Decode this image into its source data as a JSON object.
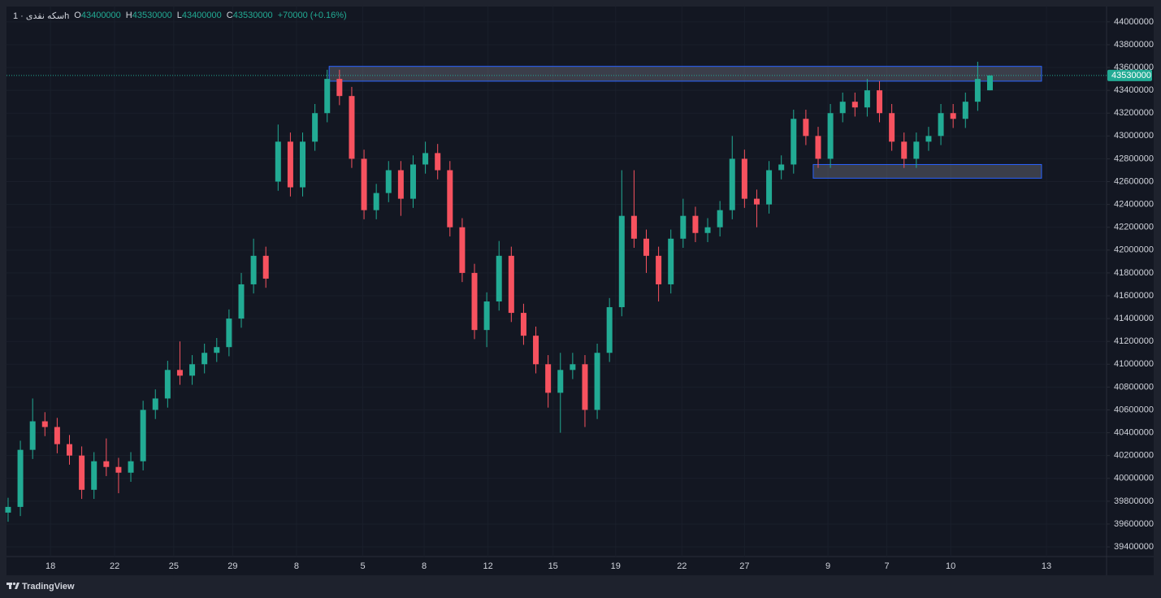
{
  "chart_data": {
    "type": "candlestick",
    "symbol": "سکه نقدی · 1h",
    "ohlc_labels": [
      "O",
      "H",
      "L",
      "C"
    ],
    "change": "+70000 (+0.16%)",
    "brand": "TradingView",
    "up_color": "#22ab94",
    "down_color": "#f7525f",
    "zone_color": "#2962ff",
    "grid": true,
    "xlim": [
      -0.13,
      89.5
    ],
    "xticks": [
      {
        "value": 3.45,
        "label": "18"
      },
      {
        "value": 8.68,
        "label": "22"
      },
      {
        "value": 13.5,
        "label": "25"
      },
      {
        "value": 18.3,
        "label": "29"
      },
      {
        "value": 23.5,
        "label": "8"
      },
      {
        "value": 28.9,
        "label": "5"
      },
      {
        "value": 33.9,
        "label": "8"
      },
      {
        "value": 39.1,
        "label": "12"
      },
      {
        "value": 44.4,
        "label": "15"
      },
      {
        "value": 49.5,
        "label": "19"
      },
      {
        "value": 54.9,
        "label": "22"
      },
      {
        "value": 60,
        "label": "27"
      },
      {
        "value": 66.8,
        "label": "9"
      },
      {
        "value": 71.6,
        "label": "7"
      },
      {
        "value": 76.8,
        "label": "10"
      },
      {
        "value": 84.6,
        "label": "13"
      }
    ],
    "ylim": [
      39315000,
      44120000
    ],
    "yticks": [
      39400000,
      39600000,
      39800000,
      40000000,
      40200000,
      40400000,
      40600000,
      40800000,
      41000000,
      41200000,
      41400000,
      41600000,
      41800000,
      42000000,
      42200000,
      42400000,
      42600000,
      42800000,
      43000000,
      43200000,
      43400000,
      43600000,
      43800000,
      44000000
    ],
    "open": [
      39700000,
      39750000,
      40250000,
      40500000,
      40450000,
      40300000,
      40200000,
      39900000,
      40150000,
      40100000,
      40050000,
      40150000,
      40600000,
      40700000,
      40950000,
      40900000,
      41000000,
      41100000,
      41150000,
      41400000,
      41700000,
      41950000,
      42600000,
      42950000,
      42550000,
      42950000,
      43200000,
      43500000,
      43350000,
      42800000,
      42350000,
      42500000,
      42700000,
      42450000,
      42750000,
      42850000,
      42700000,
      42200000,
      41800000,
      41300000,
      41550000,
      41950000,
      41450000,
      41250000,
      41000000,
      40750000,
      40950000,
      41000000,
      40600000,
      41100000,
      41500000,
      42300000,
      42100000,
      41950000,
      41700000,
      42100000,
      42300000,
      42150000,
      42200000,
      42350000,
      42800000,
      42450000,
      42400000,
      42700000,
      42750000,
      43150000,
      43000000,
      42800000,
      43200000,
      43300000,
      43250000,
      43400000,
      43200000,
      42950000,
      42800000,
      42950000,
      43000000,
      43200000,
      43150000,
      43300000,
      43400000
    ],
    "high": [
      39830000,
      40330000,
      40700000,
      40580000,
      40530000,
      40380000,
      40280000,
      40230000,
      40350000,
      40180000,
      40230000,
      40680000,
      40780000,
      41030000,
      41200000,
      41080000,
      41180000,
      41230000,
      41480000,
      41800000,
      42100000,
      42030000,
      43100000,
      43030000,
      43030000,
      43280000,
      43580000,
      43580000,
      43430000,
      42880000,
      42580000,
      42780000,
      42780000,
      42830000,
      42950000,
      42930000,
      42780000,
      42280000,
      41880000,
      41630000,
      42080000,
      42030000,
      41530000,
      41330000,
      41080000,
      41100000,
      41100000,
      41080000,
      41180000,
      41580000,
      42700000,
      42700000,
      42180000,
      42030000,
      42180000,
      42450000,
      42380000,
      42280000,
      42430000,
      43000000,
      42880000,
      42530000,
      42780000,
      42830000,
      43230000,
      43230000,
      43080000,
      43280000,
      43380000,
      43380000,
      43500000,
      43480000,
      43280000,
      43030000,
      43030000,
      43080000,
      43280000,
      43280000,
      43380000,
      43650000,
      43530000
    ],
    "low": [
      39620000,
      39670000,
      40170000,
      40370000,
      40220000,
      40120000,
      39820000,
      39820000,
      40020000,
      39870000,
      39970000,
      40070000,
      40520000,
      40620000,
      40820000,
      40820000,
      40920000,
      41020000,
      41070000,
      41320000,
      41620000,
      41670000,
      42520000,
      42470000,
      42470000,
      42870000,
      43120000,
      43270000,
      42720000,
      42270000,
      42270000,
      42420000,
      42300000,
      42370000,
      42670000,
      42620000,
      42120000,
      41720000,
      41220000,
      41150000,
      41470000,
      41370000,
      41170000,
      40920000,
      40620000,
      40400000,
      40870000,
      40450000,
      40520000,
      41020000,
      41420000,
      42020000,
      41800000,
      41550000,
      41620000,
      42020000,
      42070000,
      42070000,
      42120000,
      42270000,
      42370000,
      42200000,
      42320000,
      42620000,
      42670000,
      42920000,
      42720000,
      42720000,
      43120000,
      43170000,
      43170000,
      43120000,
      42870000,
      42720000,
      42720000,
      42870000,
      42920000,
      43070000,
      43070000,
      43220000,
      43400000
    ],
    "close": [
      39750000,
      40250000,
      40500000,
      40450000,
      40300000,
      40200000,
      39900000,
      40150000,
      40100000,
      40050000,
      40150000,
      40600000,
      40700000,
      40950000,
      40900000,
      41000000,
      41100000,
      41150000,
      41400000,
      41700000,
      41950000,
      41750000,
      42950000,
      42550000,
      42950000,
      43200000,
      43500000,
      43350000,
      42800000,
      42350000,
      42500000,
      42700000,
      42450000,
      42750000,
      42850000,
      42700000,
      42200000,
      41800000,
      41300000,
      41550000,
      41950000,
      41450000,
      41250000,
      41000000,
      40750000,
      40950000,
      41000000,
      40600000,
      41100000,
      41500000,
      42300000,
      42100000,
      41950000,
      41700000,
      42100000,
      42300000,
      42150000,
      42200000,
      42350000,
      42800000,
      42450000,
      42400000,
      42700000,
      42750000,
      43150000,
      43000000,
      42800000,
      43200000,
      43300000,
      43250000,
      43400000,
      43200000,
      42950000,
      42800000,
      42950000,
      43000000,
      43200000,
      43150000,
      43300000,
      43500000,
      43530000
    ],
    "zones": [
      {
        "x0": 26.16,
        "x1": 84.2,
        "top": 43610000,
        "bottom": 43480000
      },
      {
        "x0": 65.6,
        "x1": 84.2,
        "top": 42750000,
        "bottom": 42630000
      }
    ]
  }
}
